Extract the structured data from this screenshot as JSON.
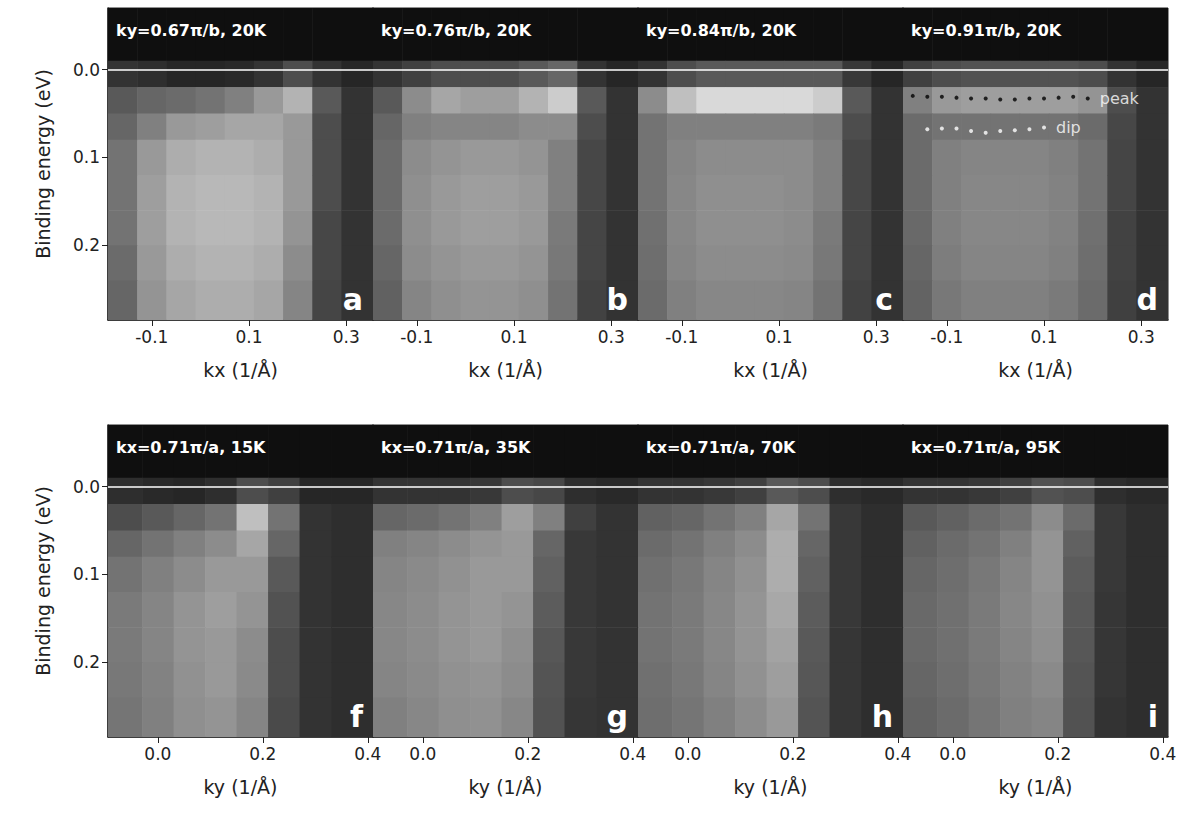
{
  "chart_data": [
    {
      "type": "heatmap",
      "panel": "a",
      "title": "ky=0.67π/b, 20K",
      "x_label": "kx (1/Å)",
      "y_label": "Binding energy (eV)",
      "xlim": [
        -0.19,
        0.355
      ],
      "xticks": [
        -0.1,
        0.1,
        0.3
      ],
      "ylim": [
        -0.07,
        0.285
      ],
      "yticks": [
        {
          "value": 0,
          "label": "0.0"
        },
        0.1,
        0.2
      ],
      "tick_labels": true,
      "hline": 0,
      "x_edges": [
        -0.19,
        -0.13,
        -0.07,
        -0.01,
        0.05,
        0.11,
        0.17,
        0.23,
        0.29,
        0.355
      ],
      "y_edges": [
        -0.07,
        -0.01,
        0.02,
        0.05,
        0.08,
        0.12,
        0.16,
        0.2,
        0.24,
        0.285
      ],
      "intensity": [
        [
          0.06,
          0.06,
          0.06,
          0.06,
          0.06,
          0.06,
          0.06,
          0.06,
          0.06
        ],
        [
          0.2,
          0.18,
          0.15,
          0.15,
          0.16,
          0.2,
          0.3,
          0.2,
          0.15
        ],
        [
          0.35,
          0.4,
          0.42,
          0.45,
          0.5,
          0.6,
          0.7,
          0.35,
          0.2
        ],
        [
          0.4,
          0.5,
          0.6,
          0.62,
          0.65,
          0.65,
          0.6,
          0.3,
          0.2
        ],
        [
          0.45,
          0.6,
          0.68,
          0.7,
          0.7,
          0.68,
          0.6,
          0.3,
          0.2
        ],
        [
          0.45,
          0.62,
          0.7,
          0.72,
          0.72,
          0.7,
          0.6,
          0.3,
          0.2
        ],
        [
          0.45,
          0.62,
          0.7,
          0.72,
          0.72,
          0.7,
          0.58,
          0.28,
          0.2
        ],
        [
          0.42,
          0.6,
          0.68,
          0.7,
          0.7,
          0.68,
          0.55,
          0.28,
          0.2
        ],
        [
          0.4,
          0.58,
          0.65,
          0.68,
          0.68,
          0.65,
          0.52,
          0.27,
          0.2
        ]
      ]
    },
    {
      "type": "heatmap",
      "panel": "b",
      "title": "ky=0.76π/b, 20K",
      "x_label": "kx (1/Å)",
      "xlim": [
        -0.19,
        0.355
      ],
      "xticks": [
        -0.1,
        0.1,
        0.3
      ],
      "ylim": [
        -0.07,
        0.285
      ],
      "yticks": [
        {
          "value": 0,
          "label": "0.0"
        },
        0.1,
        0.2
      ],
      "tick_labels": "x",
      "hline": 0,
      "x_edges": [
        -0.19,
        -0.13,
        -0.07,
        -0.01,
        0.05,
        0.11,
        0.17,
        0.23,
        0.29,
        0.355
      ],
      "y_edges": [
        -0.07,
        -0.01,
        0.02,
        0.05,
        0.08,
        0.12,
        0.16,
        0.2,
        0.24,
        0.285
      ],
      "intensity": [
        [
          0.06,
          0.06,
          0.06,
          0.06,
          0.06,
          0.06,
          0.06,
          0.06,
          0.06
        ],
        [
          0.2,
          0.25,
          0.3,
          0.3,
          0.3,
          0.35,
          0.4,
          0.2,
          0.15
        ],
        [
          0.35,
          0.55,
          0.65,
          0.62,
          0.62,
          0.7,
          0.8,
          0.35,
          0.2
        ],
        [
          0.4,
          0.5,
          0.52,
          0.52,
          0.52,
          0.55,
          0.55,
          0.3,
          0.2
        ],
        [
          0.42,
          0.55,
          0.58,
          0.6,
          0.6,
          0.58,
          0.5,
          0.28,
          0.2
        ],
        [
          0.42,
          0.56,
          0.6,
          0.62,
          0.62,
          0.6,
          0.5,
          0.28,
          0.2
        ],
        [
          0.42,
          0.56,
          0.6,
          0.62,
          0.62,
          0.6,
          0.48,
          0.27,
          0.2
        ],
        [
          0.4,
          0.55,
          0.58,
          0.6,
          0.6,
          0.58,
          0.47,
          0.27,
          0.2
        ],
        [
          0.38,
          0.52,
          0.56,
          0.58,
          0.58,
          0.56,
          0.45,
          0.26,
          0.2
        ]
      ]
    },
    {
      "type": "heatmap",
      "panel": "c",
      "title": "ky=0.84π/b, 20K",
      "x_label": "kx (1/Å)",
      "xlim": [
        -0.19,
        0.355
      ],
      "xticks": [
        -0.1,
        0.1,
        0.3
      ],
      "ylim": [
        -0.07,
        0.285
      ],
      "yticks": [
        {
          "value": 0,
          "label": "0.0"
        },
        0.1,
        0.2
      ],
      "tick_labels": "x",
      "hline": 0,
      "x_edges": [
        -0.19,
        -0.13,
        -0.07,
        -0.01,
        0.05,
        0.11,
        0.17,
        0.23,
        0.29,
        0.355
      ],
      "y_edges": [
        -0.07,
        -0.01,
        0.02,
        0.05,
        0.08,
        0.12,
        0.16,
        0.2,
        0.24,
        0.285
      ],
      "intensity": [
        [
          0.06,
          0.06,
          0.06,
          0.06,
          0.06,
          0.06,
          0.06,
          0.06,
          0.06
        ],
        [
          0.2,
          0.3,
          0.35,
          0.35,
          0.35,
          0.35,
          0.35,
          0.22,
          0.15
        ],
        [
          0.55,
          0.75,
          0.85,
          0.85,
          0.85,
          0.85,
          0.8,
          0.35,
          0.2
        ],
        [
          0.45,
          0.5,
          0.5,
          0.5,
          0.5,
          0.5,
          0.48,
          0.3,
          0.2
        ],
        [
          0.45,
          0.52,
          0.55,
          0.55,
          0.55,
          0.55,
          0.5,
          0.28,
          0.2
        ],
        [
          0.45,
          0.53,
          0.56,
          0.56,
          0.56,
          0.55,
          0.5,
          0.28,
          0.2
        ],
        [
          0.44,
          0.53,
          0.56,
          0.56,
          0.56,
          0.55,
          0.48,
          0.27,
          0.2
        ],
        [
          0.43,
          0.52,
          0.55,
          0.55,
          0.55,
          0.54,
          0.47,
          0.27,
          0.2
        ],
        [
          0.42,
          0.5,
          0.53,
          0.53,
          0.53,
          0.52,
          0.45,
          0.26,
          0.2
        ]
      ]
    },
    {
      "type": "heatmap",
      "panel": "d",
      "title": "ky=0.91π/b, 20K",
      "x_label": "kx (1/Å)",
      "xlim": [
        -0.19,
        0.355
      ],
      "xticks": [
        -0.1,
        0.1,
        0.3
      ],
      "ylim": [
        -0.07,
        0.285
      ],
      "yticks": [
        {
          "value": 0,
          "label": "0.0"
        },
        0.1,
        0.2
      ],
      "tick_labels": "x",
      "hline": 0,
      "x_edges": [
        -0.19,
        -0.13,
        -0.07,
        -0.01,
        0.05,
        0.11,
        0.17,
        0.23,
        0.29,
        0.355
      ],
      "y_edges": [
        -0.07,
        -0.01,
        0.02,
        0.05,
        0.08,
        0.12,
        0.16,
        0.2,
        0.24,
        0.285
      ],
      "intensity": [
        [
          0.06,
          0.06,
          0.06,
          0.06,
          0.06,
          0.06,
          0.06,
          0.06,
          0.06
        ],
        [
          0.25,
          0.3,
          0.32,
          0.32,
          0.32,
          0.32,
          0.3,
          0.2,
          0.15
        ],
        [
          0.5,
          0.6,
          0.62,
          0.62,
          0.62,
          0.62,
          0.58,
          0.3,
          0.2
        ],
        [
          0.42,
          0.45,
          0.45,
          0.45,
          0.45,
          0.45,
          0.42,
          0.28,
          0.2
        ],
        [
          0.42,
          0.5,
          0.52,
          0.52,
          0.52,
          0.5,
          0.45,
          0.27,
          0.2
        ],
        [
          0.42,
          0.5,
          0.53,
          0.53,
          0.53,
          0.51,
          0.45,
          0.27,
          0.2
        ],
        [
          0.41,
          0.5,
          0.53,
          0.53,
          0.53,
          0.51,
          0.44,
          0.26,
          0.2
        ],
        [
          0.4,
          0.49,
          0.52,
          0.52,
          0.52,
          0.5,
          0.43,
          0.26,
          0.2
        ],
        [
          0.39,
          0.47,
          0.5,
          0.5,
          0.5,
          0.48,
          0.42,
          0.25,
          0.2
        ]
      ],
      "series": [
        {
          "name": "peak",
          "type": "scatter",
          "marker": "circle",
          "color": "#000000",
          "x": [
            -0.17,
            -0.14,
            -0.11,
            -0.08,
            -0.05,
            -0.02,
            0.01,
            0.04,
            0.07,
            0.1,
            0.13,
            0.16,
            0.19
          ],
          "values": [
            0.03,
            0.031,
            0.031,
            0.032,
            0.033,
            0.033,
            0.034,
            0.034,
            0.033,
            0.033,
            0.032,
            0.031,
            0.033
          ]
        },
        {
          "name": "dip",
          "type": "scatter",
          "marker": "circle",
          "color": "#ffffff",
          "x": [
            -0.14,
            -0.11,
            -0.08,
            -0.05,
            -0.02,
            0.01,
            0.04,
            0.07,
            0.1
          ],
          "values": [
            0.068,
            0.067,
            0.067,
            0.07,
            0.072,
            0.07,
            0.069,
            0.068,
            0.066
          ]
        }
      ]
    },
    {
      "type": "heatmap",
      "panel": "f",
      "title": "kx=0.71π/a, 15K",
      "x_label": "ky (1/Å)",
      "y_label": "Binding energy (eV)",
      "xlim": [
        -0.095,
        0.41
      ],
      "xticks": [
        {
          "value": 0,
          "label": "0.0"
        },
        0.2,
        0.4
      ],
      "ylim": [
        -0.07,
        0.285
      ],
      "yticks": [
        {
          "value": 0,
          "label": "0.0"
        },
        0.1,
        0.2
      ],
      "tick_labels": true,
      "hline": 0,
      "x_edges": [
        -0.095,
        -0.03,
        0.03,
        0.09,
        0.15,
        0.21,
        0.27,
        0.33,
        0.41
      ],
      "y_edges": [
        -0.07,
        -0.01,
        0.02,
        0.05,
        0.08,
        0.12,
        0.16,
        0.2,
        0.24,
        0.285
      ],
      "intensity": [
        [
          0.06,
          0.06,
          0.06,
          0.06,
          0.06,
          0.06,
          0.06,
          0.06
        ],
        [
          0.18,
          0.16,
          0.15,
          0.18,
          0.3,
          0.25,
          0.15,
          0.15
        ],
        [
          0.3,
          0.35,
          0.4,
          0.45,
          0.75,
          0.45,
          0.2,
          0.18
        ],
        [
          0.4,
          0.45,
          0.5,
          0.55,
          0.65,
          0.4,
          0.2,
          0.18
        ],
        [
          0.45,
          0.5,
          0.55,
          0.6,
          0.6,
          0.35,
          0.2,
          0.18
        ],
        [
          0.48,
          0.52,
          0.58,
          0.62,
          0.58,
          0.32,
          0.2,
          0.18
        ],
        [
          0.48,
          0.52,
          0.58,
          0.6,
          0.55,
          0.3,
          0.2,
          0.18
        ],
        [
          0.47,
          0.51,
          0.57,
          0.6,
          0.54,
          0.3,
          0.2,
          0.18
        ],
        [
          0.46,
          0.5,
          0.56,
          0.58,
          0.52,
          0.29,
          0.2,
          0.18
        ]
      ]
    },
    {
      "type": "heatmap",
      "panel": "g",
      "title": "kx=0.71π/a, 35K",
      "x_label": "ky (1/Å)",
      "xlim": [
        -0.095,
        0.41
      ],
      "xticks": [
        {
          "value": 0,
          "label": "0.0"
        },
        0.2,
        0.4
      ],
      "ylim": [
        -0.07,
        0.285
      ],
      "yticks": [
        {
          "value": 0,
          "label": "0.0"
        },
        0.1,
        0.2
      ],
      "tick_labels": "x",
      "hline": 0,
      "x_edges": [
        -0.095,
        -0.03,
        0.03,
        0.09,
        0.15,
        0.21,
        0.27,
        0.33,
        0.41
      ],
      "y_edges": [
        -0.07,
        -0.01,
        0.02,
        0.05,
        0.08,
        0.12,
        0.16,
        0.2,
        0.24,
        0.285
      ],
      "intensity": [
        [
          0.06,
          0.06,
          0.06,
          0.06,
          0.06,
          0.06,
          0.06,
          0.06
        ],
        [
          0.2,
          0.2,
          0.2,
          0.22,
          0.3,
          0.28,
          0.18,
          0.16
        ],
        [
          0.4,
          0.42,
          0.45,
          0.5,
          0.62,
          0.5,
          0.25,
          0.2
        ],
        [
          0.5,
          0.52,
          0.55,
          0.58,
          0.6,
          0.4,
          0.22,
          0.2
        ],
        [
          0.52,
          0.54,
          0.57,
          0.6,
          0.6,
          0.38,
          0.22,
          0.2
        ],
        [
          0.53,
          0.55,
          0.58,
          0.6,
          0.58,
          0.36,
          0.22,
          0.2
        ],
        [
          0.53,
          0.55,
          0.58,
          0.6,
          0.56,
          0.34,
          0.22,
          0.2
        ],
        [
          0.52,
          0.54,
          0.57,
          0.58,
          0.55,
          0.33,
          0.22,
          0.2
        ],
        [
          0.5,
          0.53,
          0.56,
          0.57,
          0.53,
          0.32,
          0.21,
          0.2
        ]
      ]
    },
    {
      "type": "heatmap",
      "panel": "h",
      "title": "kx=0.71π/a, 70K",
      "x_label": "ky (1/Å)",
      "xlim": [
        -0.095,
        0.41
      ],
      "xticks": [
        {
          "value": 0,
          "label": "0.0"
        },
        0.2,
        0.4
      ],
      "ylim": [
        -0.07,
        0.285
      ],
      "yticks": [
        {
          "value": 0,
          "label": "0.0"
        },
        0.1,
        0.2
      ],
      "tick_labels": "x",
      "hline": 0,
      "x_edges": [
        -0.095,
        -0.03,
        0.03,
        0.09,
        0.15,
        0.21,
        0.27,
        0.33,
        0.41
      ],
      "y_edges": [
        -0.07,
        -0.01,
        0.02,
        0.05,
        0.08,
        0.12,
        0.16,
        0.2,
        0.24,
        0.285
      ],
      "intensity": [
        [
          0.06,
          0.06,
          0.06,
          0.06,
          0.06,
          0.06,
          0.06,
          0.06
        ],
        [
          0.2,
          0.2,
          0.22,
          0.25,
          0.35,
          0.3,
          0.18,
          0.16
        ],
        [
          0.38,
          0.4,
          0.45,
          0.5,
          0.65,
          0.45,
          0.22,
          0.18
        ],
        [
          0.42,
          0.45,
          0.5,
          0.55,
          0.68,
          0.4,
          0.22,
          0.18
        ],
        [
          0.44,
          0.47,
          0.52,
          0.57,
          0.68,
          0.38,
          0.22,
          0.18
        ],
        [
          0.45,
          0.48,
          0.53,
          0.58,
          0.66,
          0.36,
          0.22,
          0.18
        ],
        [
          0.45,
          0.48,
          0.53,
          0.58,
          0.64,
          0.35,
          0.21,
          0.18
        ],
        [
          0.44,
          0.47,
          0.52,
          0.57,
          0.62,
          0.34,
          0.21,
          0.18
        ],
        [
          0.43,
          0.46,
          0.5,
          0.55,
          0.6,
          0.33,
          0.21,
          0.18
        ]
      ]
    },
    {
      "type": "heatmap",
      "panel": "i",
      "title": "kx=0.71π/a, 95K",
      "x_label": "ky (1/Å)",
      "xlim": [
        -0.095,
        0.41
      ],
      "xticks": [
        {
          "value": 0,
          "label": "0.0"
        },
        0.2,
        0.4
      ],
      "ylim": [
        -0.07,
        0.285
      ],
      "yticks": [
        {
          "value": 0,
          "label": "0.0"
        },
        0.1,
        0.2
      ],
      "tick_labels": "x",
      "hline": 0,
      "x_edges": [
        -0.095,
        -0.03,
        0.03,
        0.09,
        0.15,
        0.21,
        0.27,
        0.33,
        0.41
      ],
      "y_edges": [
        -0.07,
        -0.01,
        0.02,
        0.05,
        0.08,
        0.12,
        0.16,
        0.2,
        0.24,
        0.285
      ],
      "intensity": [
        [
          0.06,
          0.06,
          0.06,
          0.06,
          0.06,
          0.06,
          0.06,
          0.06
        ],
        [
          0.2,
          0.2,
          0.22,
          0.25,
          0.32,
          0.3,
          0.18,
          0.16
        ],
        [
          0.35,
          0.38,
          0.42,
          0.45,
          0.55,
          0.42,
          0.22,
          0.18
        ],
        [
          0.38,
          0.42,
          0.45,
          0.5,
          0.58,
          0.38,
          0.22,
          0.18
        ],
        [
          0.4,
          0.43,
          0.47,
          0.52,
          0.58,
          0.36,
          0.22,
          0.18
        ],
        [
          0.41,
          0.44,
          0.48,
          0.53,
          0.57,
          0.35,
          0.21,
          0.18
        ],
        [
          0.41,
          0.44,
          0.48,
          0.52,
          0.56,
          0.34,
          0.21,
          0.18
        ],
        [
          0.4,
          0.43,
          0.47,
          0.51,
          0.54,
          0.33,
          0.21,
          0.18
        ],
        [
          0.39,
          0.42,
          0.46,
          0.5,
          0.52,
          0.32,
          0.2,
          0.18
        ]
      ]
    }
  ]
}
